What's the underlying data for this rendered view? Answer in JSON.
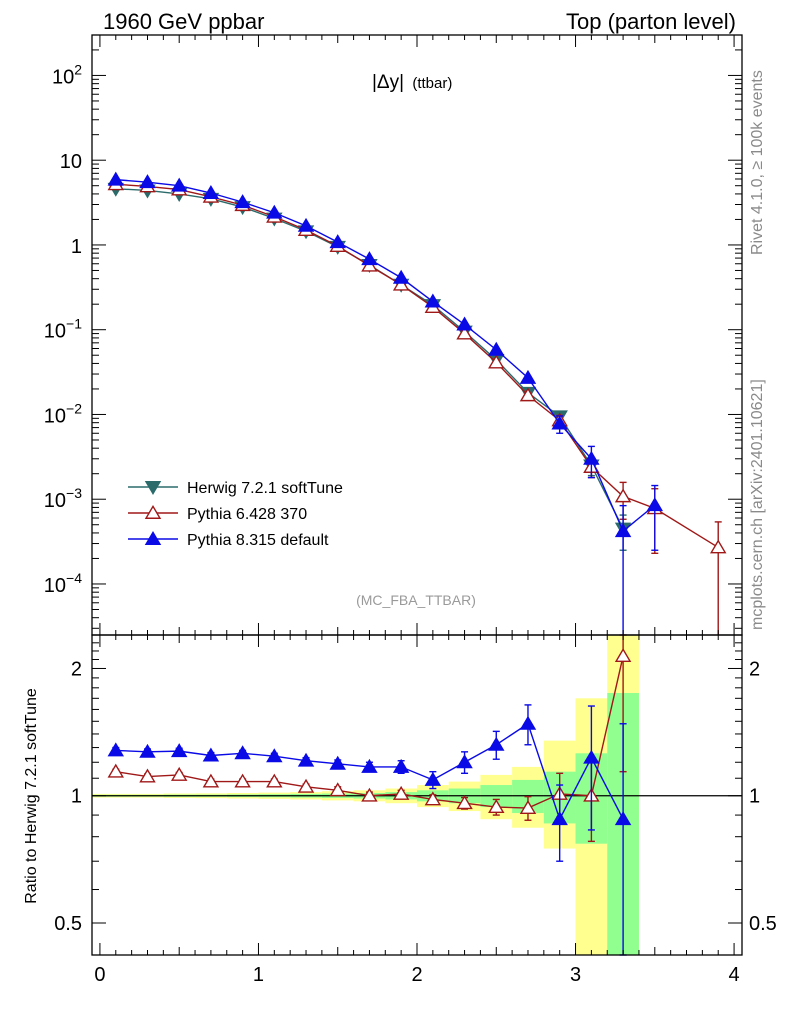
{
  "header": {
    "left": "1960 GeV ppbar",
    "right": "Top (parton level)"
  },
  "side": {
    "rivet": "Rivet 4.1.0, ≥ 100k events",
    "mcplots": "mcplots.cern.ch [arXiv:2401.10621]"
  },
  "colors": {
    "herwig": "#2b6b6b",
    "pythia6": "#a01818",
    "pythia8": "#0a0ae6",
    "band_outer": "#ffff90",
    "band_inner": "#90ff90"
  },
  "chart_data": [
    {
      "type": "line",
      "panel": "main",
      "title": "|Δy| (ttbar)",
      "title_main": "|Δy|",
      "title_sub": "(ttbar)",
      "watermark": "(MC_FBA_TTBAR)",
      "yscale": "log",
      "xlim": [
        -0.05,
        4.05
      ],
      "ylim": [
        2.5e-05,
        300
      ],
      "y_ticks": [
        {
          "value": 0.0001,
          "base": "10",
          "exp": "−4"
        },
        {
          "value": 0.001,
          "base": "10",
          "exp": "−3"
        },
        {
          "value": 0.01,
          "base": "10",
          "exp": "−2"
        },
        {
          "value": 0.1,
          "base": "10",
          "exp": "−1"
        },
        {
          "value": 1,
          "base": "1",
          "exp": ""
        },
        {
          "value": 10,
          "base": "10",
          "exp": ""
        },
        {
          "value": 100,
          "base": "10",
          "exp": "2"
        }
      ],
      "legend_position": "lower-left",
      "series": [
        {
          "name": "Herwig 7.2.1 softTune",
          "key": "herwig",
          "marker": "triangle-down-filled",
          "x": [
            0.1,
            0.3,
            0.5,
            0.7,
            0.9,
            1.1,
            1.3,
            1.5,
            1.7,
            1.9,
            2.1,
            2.3,
            2.5,
            2.7,
            2.9,
            3.1,
            3.3
          ],
          "values": [
            4.6,
            4.4,
            4.0,
            3.5,
            2.8,
            2.05,
            1.45,
            0.95,
            0.58,
            0.34,
            0.195,
            0.095,
            0.044,
            0.018,
            0.0095,
            0.0025,
            0.00045
          ],
          "err": [
            0.05,
            0.05,
            0.05,
            0.04,
            0.03,
            0.02,
            0.02,
            0.01,
            0.008,
            0.005,
            0.003,
            0.002,
            0.001,
            0.0006,
            0.0004,
            0.0006,
            0.0002
          ]
        },
        {
          "name": "Pythia 6.428 370",
          "key": "pythia6",
          "marker": "triangle-up-open",
          "x": [
            0.1,
            0.3,
            0.5,
            0.7,
            0.9,
            1.1,
            1.3,
            1.5,
            1.7,
            1.9,
            2.1,
            2.3,
            2.5,
            2.7,
            2.9,
            3.1,
            3.3,
            3.5,
            3.9
          ],
          "values": [
            5.2,
            4.9,
            4.5,
            3.7,
            2.95,
            2.15,
            1.5,
            0.97,
            0.57,
            0.34,
            0.185,
            0.09,
            0.041,
            0.0168,
            0.0085,
            0.0024,
            0.00108,
            0.00078,
            0.00027
          ],
          "err": [
            0.06,
            0.05,
            0.05,
            0.04,
            0.03,
            0.02,
            0.02,
            0.01,
            0.008,
            0.005,
            0.003,
            0.002,
            0.0012,
            0.0008,
            0.0012,
            0.0006,
            0.0005,
            0.00055,
            0.00027
          ]
        },
        {
          "name": "Pythia 8.315 default",
          "key": "pythia8",
          "marker": "triangle-up-filled",
          "x": [
            0.1,
            0.3,
            0.5,
            0.7,
            0.9,
            1.1,
            1.3,
            1.5,
            1.7,
            1.9,
            2.1,
            2.3,
            2.5,
            2.7,
            2.9,
            3.1,
            3.3,
            3.5
          ],
          "values": [
            5.9,
            5.5,
            5.0,
            4.1,
            3.2,
            2.4,
            1.68,
            1.08,
            0.68,
            0.41,
            0.215,
            0.115,
            0.058,
            0.027,
            0.0078,
            0.003,
            0.00042,
            0.00085
          ],
          "err": [
            0.06,
            0.05,
            0.05,
            0.04,
            0.03,
            0.02,
            0.02,
            0.01,
            0.008,
            0.005,
            0.003,
            0.002,
            0.0015,
            0.001,
            0.0018,
            0.0012,
            0.00042,
            0.0006
          ]
        }
      ]
    },
    {
      "type": "line",
      "panel": "ratio",
      "ylabel": "Ratio to Herwig 7.2.1 softTune",
      "yscale": "log",
      "xlim": [
        -0.05,
        4.05
      ],
      "ylim": [
        0.42,
        2.4
      ],
      "y_ticks": [
        {
          "value": 0.5,
          "label": "0.5"
        },
        {
          "value": 1,
          "label": "1"
        },
        {
          "value": 2,
          "label": "2"
        }
      ],
      "x_ticks": [
        0,
        1,
        2,
        3,
        4
      ],
      "band": {
        "edges": [
          -0.05,
          0.2,
          0.4,
          0.6,
          0.8,
          1.0,
          1.2,
          1.4,
          1.6,
          1.8,
          2.0,
          2.2,
          2.4,
          2.6,
          2.8,
          3.0,
          3.2,
          3.4
        ],
        "inner_lo": [
          0.995,
          0.995,
          0.994,
          0.994,
          0.993,
          0.992,
          0.99,
          0.988,
          0.985,
          0.98,
          0.97,
          0.96,
          0.94,
          0.91,
          0.86,
          0.77,
          0.4
        ],
        "inner_hi": [
          1.005,
          1.005,
          1.006,
          1.006,
          1.007,
          1.008,
          1.01,
          1.012,
          1.015,
          1.02,
          1.03,
          1.04,
          1.06,
          1.09,
          1.14,
          1.26,
          1.75
        ],
        "outer_lo": [
          0.99,
          0.99,
          0.988,
          0.987,
          0.985,
          0.983,
          0.98,
          0.975,
          0.97,
          0.96,
          0.94,
          0.92,
          0.88,
          0.84,
          0.75,
          0.4,
          0.4
        ],
        "outer_hi": [
          1.01,
          1.01,
          1.012,
          1.013,
          1.015,
          1.017,
          1.02,
          1.025,
          1.03,
          1.04,
          1.06,
          1.08,
          1.12,
          1.17,
          1.35,
          1.7,
          2.4
        ]
      },
      "series": [
        {
          "name": "Pythia 6.428 370",
          "key": "pythia6",
          "marker": "triangle-up-open",
          "x": [
            0.1,
            0.3,
            0.5,
            0.7,
            0.9,
            1.1,
            1.3,
            1.5,
            1.7,
            1.9,
            2.1,
            2.3,
            2.5,
            2.7,
            2.9,
            3.1,
            3.3
          ],
          "values": [
            1.14,
            1.11,
            1.12,
            1.08,
            1.08,
            1.08,
            1.05,
            1.03,
            1.0,
            1.01,
            0.98,
            0.96,
            0.94,
            0.935,
            1.01,
            1.0,
            2.14
          ],
          "err": [
            0.015,
            0.015,
            0.015,
            0.015,
            0.015,
            0.015,
            0.015,
            0.02,
            0.02,
            0.02,
            0.025,
            0.03,
            0.04,
            0.06,
            0.12,
            0.22,
            1.0
          ]
        },
        {
          "name": "Pythia 8.315 default",
          "key": "pythia8",
          "marker": "triangle-up-filled",
          "x": [
            0.1,
            0.3,
            0.5,
            0.7,
            0.9,
            1.1,
            1.3,
            1.5,
            1.7,
            1.9,
            2.1,
            2.3,
            2.5,
            2.7,
            2.9,
            3.1,
            3.3
          ],
          "values": [
            1.28,
            1.27,
            1.275,
            1.245,
            1.26,
            1.24,
            1.21,
            1.19,
            1.17,
            1.17,
            1.09,
            1.2,
            1.32,
            1.48,
            0.88,
            1.23,
            0.88
          ],
          "err": [
            0.02,
            0.02,
            0.02,
            0.02,
            0.02,
            0.02,
            0.02,
            0.025,
            0.03,
            0.04,
            0.05,
            0.07,
            0.1,
            0.16,
            0.18,
            0.4,
            0.6
          ]
        }
      ]
    }
  ]
}
